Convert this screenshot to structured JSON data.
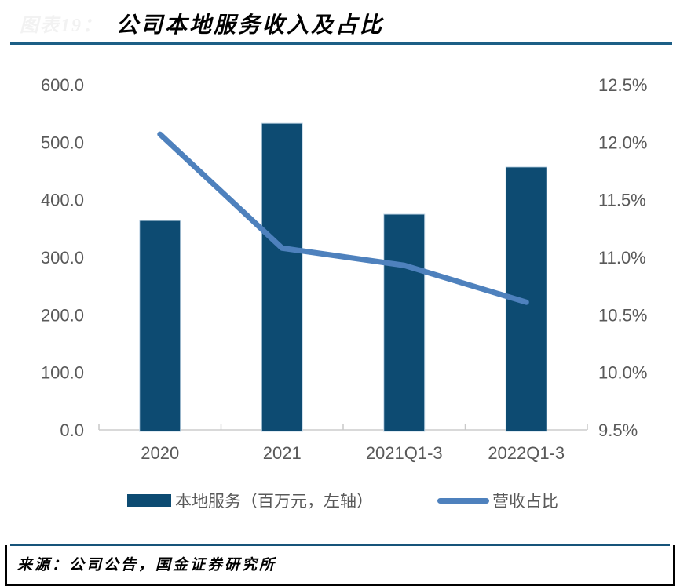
{
  "header": {
    "figure_label": "图表19：",
    "title": "公司本地服务收入及占比"
  },
  "legend": {
    "bar_label": "本地服务（百万元，左轴）",
    "line_label": "营收占比"
  },
  "footer": {
    "source": "来源：公司公告，国金证券研究所"
  },
  "colors": {
    "bar": "#0d4b72",
    "bar_edge": "#c6d9e8",
    "line": "#4e81bd",
    "axis": "#d9d9d9",
    "tick": "#c9c9c9",
    "label_text": "#595959",
    "title_rule": "#1d5f86",
    "footer_rule": "#17547a"
  },
  "chart_data": {
    "type": "bar+line combo",
    "title": "公司本地服务收入及占比",
    "categories": [
      "2020",
      "2021",
      "2021Q1-3",
      "2022Q1-3"
    ],
    "series": [
      {
        "name": "本地服务（百万元，左轴）",
        "type": "bar",
        "axis": "left",
        "values": [
          364,
          533,
          375,
          457
        ]
      },
      {
        "name": "营收占比",
        "type": "line",
        "axis": "right",
        "values": [
          12.07,
          11.08,
          10.93,
          10.61
        ]
      }
    ],
    "left_axis": {
      "min": 0,
      "max": 600,
      "tick_values": [
        0,
        100,
        200,
        300,
        400,
        500,
        600
      ],
      "tick_labels": [
        "0.0",
        "100.0",
        "200.0",
        "300.0",
        "400.0",
        "500.0",
        "600.0"
      ]
    },
    "right_axis": {
      "min": 9.5,
      "max": 12.5,
      "tick_values": [
        9.5,
        10.0,
        10.5,
        11.0,
        11.5,
        12.0,
        12.5
      ],
      "tick_labels": [
        "9.5%",
        "10.0%",
        "10.5%",
        "11.0%",
        "11.5%",
        "12.0%",
        "12.5%"
      ]
    },
    "grid": false,
    "legend_position": "bottom"
  }
}
